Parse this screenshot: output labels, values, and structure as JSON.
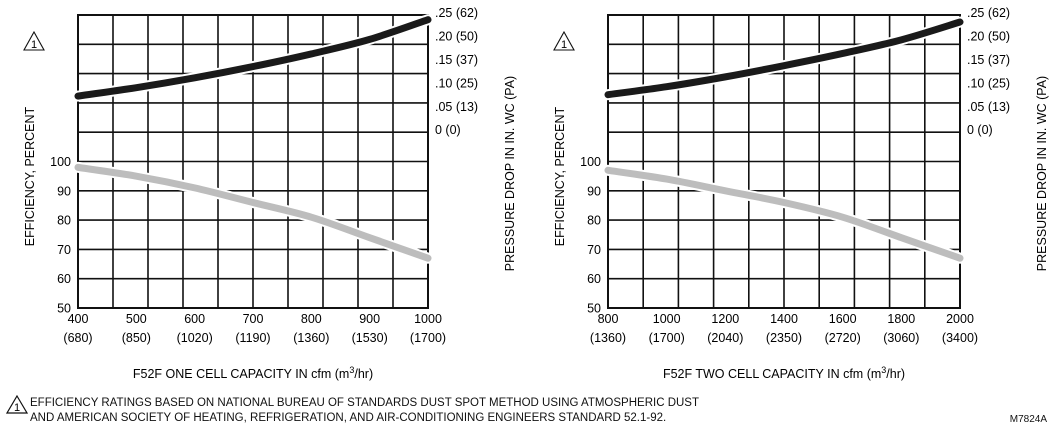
{
  "chart_data": [
    {
      "type": "line",
      "title": "",
      "xlabel": "F52F ONE CELL CAPACITY IN cfm (m",
      "xlabel_sup": "3",
      "xlabel_tail": "/hr)",
      "ylabel_left": "EFFICIENCY, PERCENT",
      "ylabel_right": "PRESSURE DROP IN IN. WC (PA)",
      "x_ticks": [
        "400",
        "500",
        "600",
        "700",
        "800",
        "900",
        "1000"
      ],
      "x_ticks_secondary": [
        "(680)",
        "(850)",
        "(1020)",
        "(1190)",
        "(1360)",
        "(1530)",
        "(1700)"
      ],
      "xlim": [
        400,
        1000
      ],
      "efficiency_ticks": [
        "100",
        "90",
        "80",
        "70",
        "60",
        "50"
      ],
      "efficiency_lim": [
        50,
        100
      ],
      "pressure_ticks": [
        ".25 (62)",
        ".20 (50)",
        ".15 (37)",
        ".10 (25)",
        ".05 (13)",
        "0 (0)"
      ],
      "pressure_lim": [
        0,
        0.25
      ],
      "footnote_marker": "1",
      "series": [
        {
          "key": "pressure_drop",
          "axis": "pressure",
          "color": "#1a1a1a",
          "x": [
            400,
            500,
            600,
            700,
            800,
            900,
            1000
          ],
          "y": [
            0.077,
            0.095,
            0.116,
            0.14,
            0.167,
            0.198,
            0.24
          ]
        },
        {
          "key": "efficiency",
          "axis": "efficiency",
          "color": "#bdbdbd",
          "x": [
            400,
            500,
            600,
            700,
            800,
            900,
            1000
          ],
          "y": [
            98,
            95,
            91,
            86,
            81,
            74,
            67
          ]
        }
      ]
    },
    {
      "type": "line",
      "title": "",
      "xlabel": "F52F TWO CELL CAPACITY IN cfm (m",
      "xlabel_sup": "3",
      "xlabel_tail": "/hr)",
      "ylabel_left": "EFFICIENCY, PERCENT",
      "ylabel_right": "PRESSURE DROP IN IN. WC (PA)",
      "x_ticks": [
        "800",
        "1000",
        "1200",
        "1400",
        "1600",
        "1800",
        "2000"
      ],
      "x_ticks_secondary": [
        "(1360)",
        "(1700)",
        "(2040)",
        "(2350)",
        "(2720)",
        "(3060)",
        "(3400)"
      ],
      "xlim": [
        800,
        2000
      ],
      "efficiency_ticks": [
        "100",
        "90",
        "80",
        "70",
        "60",
        "50"
      ],
      "efficiency_lim": [
        50,
        100
      ],
      "pressure_ticks": [
        ".25 (62)",
        ".20 (50)",
        ".15 (37)",
        ".10 (25)",
        ".05 (13)",
        "0 (0)"
      ],
      "pressure_lim": [
        0,
        0.25
      ],
      "footnote_marker": "1",
      "series": [
        {
          "key": "pressure_drop",
          "axis": "pressure",
          "color": "#1a1a1a",
          "x": [
            800,
            1000,
            1200,
            1400,
            1600,
            1800,
            2000
          ],
          "y": [
            0.08,
            0.097,
            0.118,
            0.142,
            0.168,
            0.197,
            0.235
          ]
        },
        {
          "key": "efficiency",
          "axis": "efficiency",
          "color": "#bdbdbd",
          "x": [
            800,
            1000,
            1200,
            1400,
            1600,
            1800,
            2000
          ],
          "y": [
            97,
            94,
            90,
            86,
            81,
            74,
            67
          ]
        }
      ]
    }
  ],
  "footnote": {
    "marker": "1",
    "line1": "EFFICIENCY RATINGS BASED ON NATIONAL BUREAU OF STANDARDS DUST SPOT METHOD USING ATMOSPHERIC DUST",
    "line2": "AND AMERICAN SOCIETY OF HEATING, REFRIGERATION, AND  AIR-CONDITIONING ENGINEERS STANDARD 52.1-92."
  },
  "figure_code": "M7824A"
}
